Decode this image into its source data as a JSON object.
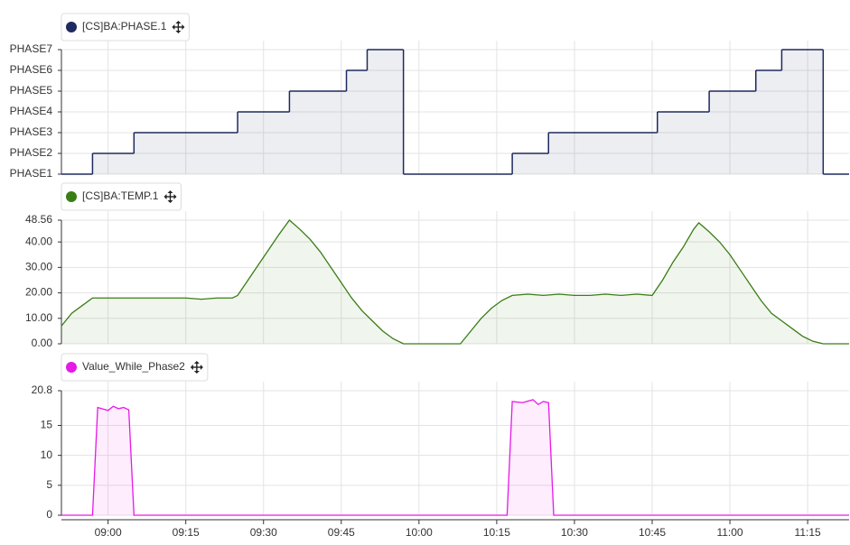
{
  "chart_data": [
    {
      "type": "step",
      "x": [
        "08:51",
        "08:57",
        "09:05",
        "09:25",
        "09:35",
        "09:46",
        "09:50",
        "09:57",
        "10:18",
        "10:25",
        "10:46",
        "10:56",
        "11:05",
        "11:10",
        "11:18"
      ],
      "series": [
        {
          "name": "[CS]BA:PHASE.1",
          "color": "#1f2a5e",
          "values": [
            1,
            2,
            3,
            4,
            5,
            6,
            7,
            1,
            2,
            3,
            4,
            5,
            6,
            7,
            1
          ]
        }
      ],
      "xlim": [
        "08:51",
        "11:23"
      ],
      "xticks": [
        "09:00",
        "09:15",
        "09:30",
        "09:45",
        "10:00",
        "10:15",
        "10:30",
        "10:45",
        "11:00",
        "11:15"
      ],
      "ylim": [
        1,
        7
      ],
      "yticks": [
        {
          "value": 1,
          "label": "PHASE1"
        },
        {
          "value": 2,
          "label": "PHASE2"
        },
        {
          "value": 3,
          "label": "PHASE3"
        },
        {
          "value": 4,
          "label": "PHASE4"
        },
        {
          "value": 5,
          "label": "PHASE5"
        },
        {
          "value": 6,
          "label": "PHASE6"
        },
        {
          "value": 7,
          "label": "PHASE7"
        }
      ],
      "grid": true
    },
    {
      "type": "area",
      "x": [
        "08:51",
        "08:53",
        "08:55",
        "08:57",
        "09:00",
        "09:03",
        "09:06",
        "09:09",
        "09:12",
        "09:15",
        "09:18",
        "09:21",
        "09:24",
        "09:25",
        "09:27",
        "09:29",
        "09:31",
        "09:33",
        "09:35",
        "09:37",
        "09:39",
        "09:41",
        "09:43",
        "09:45",
        "09:47",
        "09:49",
        "09:51",
        "09:53",
        "09:55",
        "09:57",
        "10:00",
        "10:05",
        "10:08",
        "10:10",
        "10:12",
        "10:14",
        "10:16",
        "10:18",
        "10:21",
        "10:24",
        "10:27",
        "10:30",
        "10:33",
        "10:36",
        "10:39",
        "10:42",
        "10:45",
        "10:47",
        "10:49",
        "10:51",
        "10:53",
        "10:54",
        "10:56",
        "10:58",
        "11:00",
        "11:02",
        "11:04",
        "11:06",
        "11:08",
        "11:10",
        "11:12",
        "11:14",
        "11:16",
        "11:18",
        "11:23"
      ],
      "series": [
        {
          "name": "[CS]BA:TEMP.1",
          "color": "#3a7d15",
          "values": [
            7,
            12,
            15,
            18,
            18,
            18,
            18,
            18,
            18,
            18,
            17.5,
            18,
            18,
            19,
            25,
            31,
            37,
            43,
            48.56,
            45,
            41,
            36,
            30,
            24,
            18,
            13,
            9,
            5,
            2,
            0,
            0,
            0,
            0,
            5,
            10,
            14,
            17,
            19,
            19.5,
            19,
            19.5,
            19,
            19,
            19.5,
            19,
            19.5,
            19,
            25,
            32,
            38,
            45,
            47.5,
            44,
            40,
            35,
            29,
            23,
            17,
            12,
            9,
            6,
            3,
            1,
            0,
            0
          ]
        }
      ],
      "xlim": [
        "08:51",
        "11:23"
      ],
      "xticks": [
        "09:00",
        "09:15",
        "09:30",
        "09:45",
        "10:00",
        "10:15",
        "10:30",
        "10:45",
        "11:00",
        "11:15"
      ],
      "ylim": [
        0,
        48.56
      ],
      "yticks": [
        {
          "value": 0,
          "label": "0.00"
        },
        {
          "value": 10,
          "label": "10.00"
        },
        {
          "value": 20,
          "label": "20.00"
        },
        {
          "value": 30,
          "label": "30.00"
        },
        {
          "value": 40,
          "label": "40.00"
        },
        48.56
      ],
      "grid": true
    },
    {
      "type": "area",
      "x": [
        "08:51",
        "08:57",
        "08:58",
        "09:00",
        "09:01",
        "09:02",
        "09:03",
        "09:04",
        "09:05",
        "10:17",
        "10:18",
        "10:20",
        "10:22",
        "10:23",
        "10:24",
        "10:25",
        "10:26",
        "11:23"
      ],
      "series": [
        {
          "name": "Value_While_Phase2",
          "color": "#e619e6",
          "values": [
            0,
            0,
            18,
            17.5,
            18.2,
            17.8,
            18,
            17.6,
            0,
            0,
            19,
            18.8,
            19.3,
            18.5,
            19,
            18.8,
            0,
            0
          ]
        }
      ],
      "xlim": [
        "08:51",
        "11:23"
      ],
      "xticks": [
        "09:00",
        "09:15",
        "09:30",
        "09:45",
        "10:00",
        "10:15",
        "10:30",
        "10:45",
        "11:00",
        "11:15"
      ],
      "ylim": [
        0,
        20.8
      ],
      "yticks": [
        0,
        5,
        10,
        15,
        20.8
      ],
      "grid": true
    }
  ]
}
